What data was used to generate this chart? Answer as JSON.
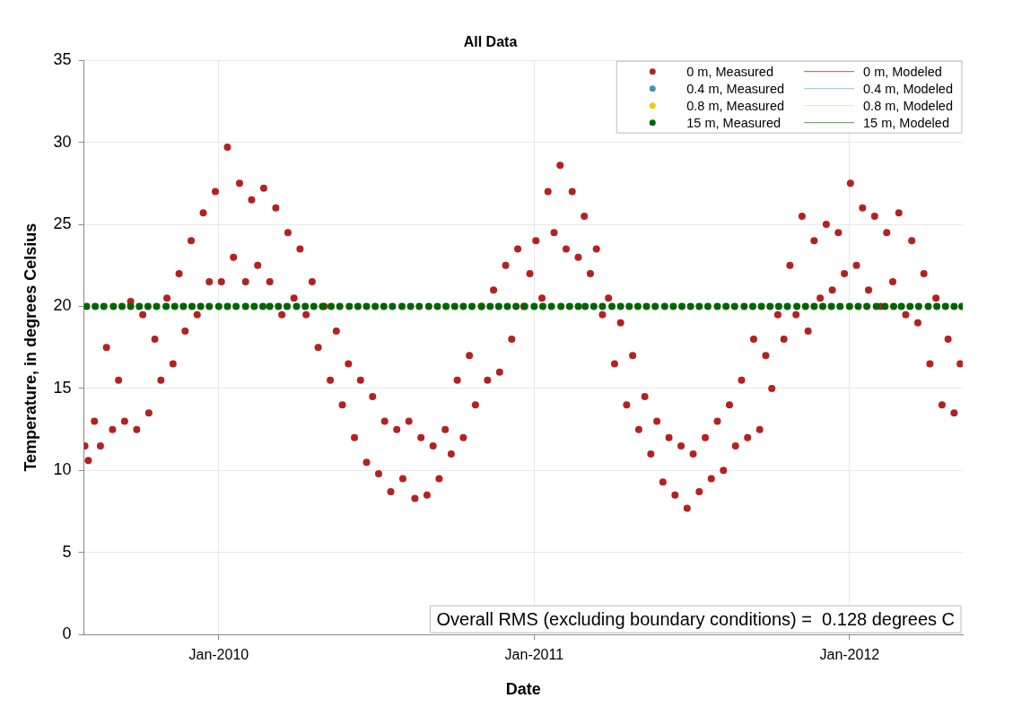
{
  "chart_data": {
    "type": "scatter",
    "title": "All Data",
    "xlabel": "Date",
    "ylabel": "Temperature, in degrees Celsius",
    "xlim": [
      "2009-07-29",
      "2012-05-11"
    ],
    "xticks": [
      {
        "value": "2010-01-01",
        "label": "Jan-2010"
      },
      {
        "value": "2011-01-01",
        "label": "Jan-2011"
      },
      {
        "value": "2012-01-01",
        "label": "Jan-2012"
      }
    ],
    "ylim": [
      0,
      35
    ],
    "yticks": [
      0,
      5,
      10,
      15,
      20,
      25,
      30,
      35
    ],
    "grid": true,
    "legend": "top right",
    "marker": "circle",
    "annotations": [
      "Overall RMS (excluding boundary conditions) =  0.128 degrees C"
    ],
    "series": [
      {
        "name": "0 m, Measured",
        "type": "scatter",
        "color": "#b22222",
        "x": [
          "2009-07-30",
          "2009-08-03",
          "2009-08-10",
          "2009-08-17",
          "2009-08-24",
          "2009-08-31",
          "2009-09-07",
          "2009-09-14",
          "2009-09-21",
          "2009-09-28",
          "2009-10-05",
          "2009-10-12",
          "2009-10-19",
          "2009-10-26",
          "2009-11-02",
          "2009-11-09",
          "2009-11-16",
          "2009-11-23",
          "2009-11-30",
          "2009-12-07",
          "2009-12-14",
          "2009-12-21",
          "2009-12-28",
          "2010-01-04",
          "2010-01-11",
          "2010-01-18",
          "2010-01-25",
          "2010-02-01",
          "2010-02-08",
          "2010-02-15",
          "2010-02-22",
          "2010-03-01",
          "2010-03-08",
          "2010-03-15",
          "2010-03-22",
          "2010-03-29",
          "2010-04-05",
          "2010-04-12",
          "2010-04-19",
          "2010-04-26",
          "2010-05-03",
          "2010-05-10",
          "2010-05-17",
          "2010-05-24",
          "2010-05-31",
          "2010-06-07",
          "2010-06-14",
          "2010-06-21",
          "2010-06-28",
          "2010-07-05",
          "2010-07-12",
          "2010-07-19",
          "2010-07-26",
          "2010-08-02",
          "2010-08-09",
          "2010-08-16",
          "2010-08-23",
          "2010-08-30",
          "2010-09-06",
          "2010-09-13",
          "2010-09-20",
          "2010-09-27",
          "2010-10-04",
          "2010-10-11",
          "2010-10-18",
          "2010-10-25",
          "2010-11-01",
          "2010-11-08",
          "2010-11-15",
          "2010-11-22",
          "2010-11-29",
          "2010-12-06",
          "2010-12-13",
          "2010-12-20",
          "2010-12-27",
          "2011-01-03",
          "2011-01-10",
          "2011-01-17",
          "2011-01-24",
          "2011-01-31",
          "2011-02-07",
          "2011-02-14",
          "2011-02-21",
          "2011-02-28",
          "2011-03-07",
          "2011-03-14",
          "2011-03-21",
          "2011-03-28",
          "2011-04-04",
          "2011-04-11",
          "2011-04-18",
          "2011-04-25",
          "2011-05-02",
          "2011-05-09",
          "2011-05-16",
          "2011-05-23",
          "2011-05-30",
          "2011-06-06",
          "2011-06-13",
          "2011-06-20",
          "2011-06-27",
          "2011-07-04",
          "2011-07-11",
          "2011-07-18",
          "2011-07-25",
          "2011-08-01",
          "2011-08-08",
          "2011-08-15",
          "2011-08-22",
          "2011-08-29",
          "2011-09-05",
          "2011-09-12",
          "2011-09-19",
          "2011-09-26",
          "2011-10-03",
          "2011-10-10",
          "2011-10-17",
          "2011-10-24",
          "2011-10-31",
          "2011-11-07",
          "2011-11-14",
          "2011-11-21",
          "2011-11-28",
          "2011-12-05",
          "2011-12-12",
          "2011-12-19",
          "2011-12-26",
          "2012-01-02",
          "2012-01-09",
          "2012-01-16",
          "2012-01-23",
          "2012-01-30",
          "2012-02-06",
          "2012-02-13",
          "2012-02-20",
          "2012-02-27",
          "2012-03-06",
          "2012-03-13",
          "2012-03-20",
          "2012-03-27",
          "2012-04-03",
          "2012-04-10",
          "2012-04-17",
          "2012-04-24",
          "2012-05-01",
          "2012-05-08"
        ],
        "values": [
          11.5,
          10.6,
          13,
          11.5,
          17.5,
          12.5,
          15.5,
          13,
          20.3,
          12.5,
          19.5,
          13.5,
          18,
          15.5,
          20.5,
          16.5,
          22,
          18.5,
          24,
          19.5,
          25.7,
          21.5,
          27,
          21.5,
          29.7,
          23,
          27.5,
          21.5,
          26.5,
          22.5,
          27.2,
          21.5,
          26,
          19.5,
          24.5,
          20.5,
          23.5,
          19.5,
          21.5,
          17.5,
          20,
          15.5,
          18.5,
          14,
          16.5,
          12,
          15.5,
          10.5,
          14.5,
          9.8,
          13,
          8.7,
          12.5,
          9.5,
          13,
          8.3,
          12,
          8.5,
          11.5,
          9.5,
          12.5,
          11,
          15.5,
          12,
          17,
          14,
          20,
          15.5,
          21,
          16,
          22.5,
          18,
          23.5,
          20,
          22,
          24,
          20.5,
          27,
          24.5,
          28.6,
          23.5,
          27,
          23,
          25.5,
          22,
          23.5,
          19.5,
          20.5,
          16.5,
          19,
          14,
          17,
          12.5,
          14.5,
          11,
          13,
          9.3,
          12,
          8.5,
          11.5,
          7.7,
          11,
          8.7,
          12,
          9.5,
          13,
          10,
          14,
          11.5,
          15.5,
          12,
          18,
          12.5,
          17,
          15,
          19.5,
          18,
          22.5,
          19.5,
          25.5,
          18.5,
          24,
          20.5,
          25,
          21,
          24.5,
          22,
          27.5,
          22.5,
          26,
          21,
          25.5,
          20,
          24.5,
          21.5,
          25.7,
          19.5,
          24,
          19,
          22,
          16.5,
          20.5,
          14,
          18,
          13.5,
          16.5
        ]
      },
      {
        "name": "0.4 m, Measured",
        "type": "scatter",
        "color": "#4a8fb5"
      },
      {
        "name": "0.8 m, Measured",
        "type": "scatter",
        "color": "#f2cc00"
      },
      {
        "name": "15 m, Measured",
        "type": "scatter",
        "color": "#006400",
        "x": [
          "2009-08-01",
          "2009-08-11",
          "2009-08-21",
          "2009-09-01",
          "2009-09-11",
          "2009-09-21",
          "2009-10-01",
          "2009-10-11",
          "2009-10-21",
          "2009-11-01",
          "2009-11-11",
          "2009-11-21",
          "2009-12-01",
          "2009-12-11",
          "2009-12-21",
          "2010-01-01",
          "2010-01-11",
          "2010-01-21",
          "2010-02-01",
          "2010-02-11",
          "2010-02-21",
          "2010-03-01",
          "2010-03-11",
          "2010-03-21",
          "2010-04-01",
          "2010-04-11",
          "2010-04-21",
          "2010-05-01",
          "2010-05-11",
          "2010-05-21",
          "2010-06-01",
          "2010-06-11",
          "2010-06-21",
          "2010-07-01",
          "2010-07-11",
          "2010-07-21",
          "2010-08-01",
          "2010-08-11",
          "2010-08-21",
          "2010-09-01",
          "2010-09-11",
          "2010-09-21",
          "2010-10-01",
          "2010-10-11",
          "2010-10-21",
          "2010-11-01",
          "2010-11-11",
          "2010-11-21",
          "2010-12-01",
          "2010-12-11",
          "2010-12-21",
          "2011-01-01",
          "2011-01-11",
          "2011-01-21",
          "2011-02-01",
          "2011-02-11",
          "2011-02-21",
          "2011-03-01",
          "2011-03-11",
          "2011-03-21",
          "2011-04-01",
          "2011-04-11",
          "2011-04-21",
          "2011-05-01",
          "2011-05-11",
          "2011-05-21",
          "2011-06-01",
          "2011-06-11",
          "2011-06-21",
          "2011-07-01",
          "2011-07-11",
          "2011-07-21",
          "2011-08-01",
          "2011-08-11",
          "2011-08-21",
          "2011-09-01",
          "2011-09-11",
          "2011-09-21",
          "2011-10-01",
          "2011-10-11",
          "2011-10-21",
          "2011-11-01",
          "2011-11-11",
          "2011-11-21",
          "2011-12-01",
          "2011-12-11",
          "2011-12-21",
          "2012-01-01",
          "2012-01-11",
          "2012-01-21",
          "2012-02-01",
          "2012-02-11",
          "2012-02-21",
          "2012-03-01",
          "2012-03-11",
          "2012-03-21",
          "2012-04-01",
          "2012-04-11",
          "2012-04-21",
          "2012-05-01",
          "2012-05-10"
        ],
        "values": [
          20,
          20,
          20,
          20,
          20,
          20,
          20,
          20,
          20,
          20,
          20,
          20,
          20,
          20,
          20,
          20,
          20,
          20,
          20,
          20,
          20,
          20,
          20,
          20,
          20,
          20,
          20,
          20,
          20,
          20,
          20,
          20,
          20,
          20,
          20,
          20,
          20,
          20,
          20,
          20,
          20,
          20,
          20,
          20,
          20,
          20,
          20,
          20,
          20,
          20,
          20,
          20,
          20,
          20,
          20,
          20,
          20,
          20,
          20,
          20,
          20,
          20,
          20,
          20,
          20,
          20,
          20,
          20,
          20,
          20,
          20,
          20,
          20,
          20,
          20,
          20,
          20,
          20,
          20,
          20,
          20,
          20,
          20,
          20,
          20,
          20,
          20,
          20,
          20,
          20,
          20,
          20,
          20,
          20,
          20,
          20,
          20,
          20,
          20,
          20,
          20
        ]
      },
      {
        "name": "0 m, Modeled",
        "type": "line",
        "color": "#c0504d"
      },
      {
        "name": "0.4 m, Modeled",
        "type": "line",
        "color": "#9bbfcc"
      },
      {
        "name": "0.8 m, Modeled",
        "type": "line",
        "color": "#f7e67a"
      },
      {
        "name": "15 m, Modeled",
        "type": "line",
        "color": "#5f8f5f"
      }
    ]
  }
}
